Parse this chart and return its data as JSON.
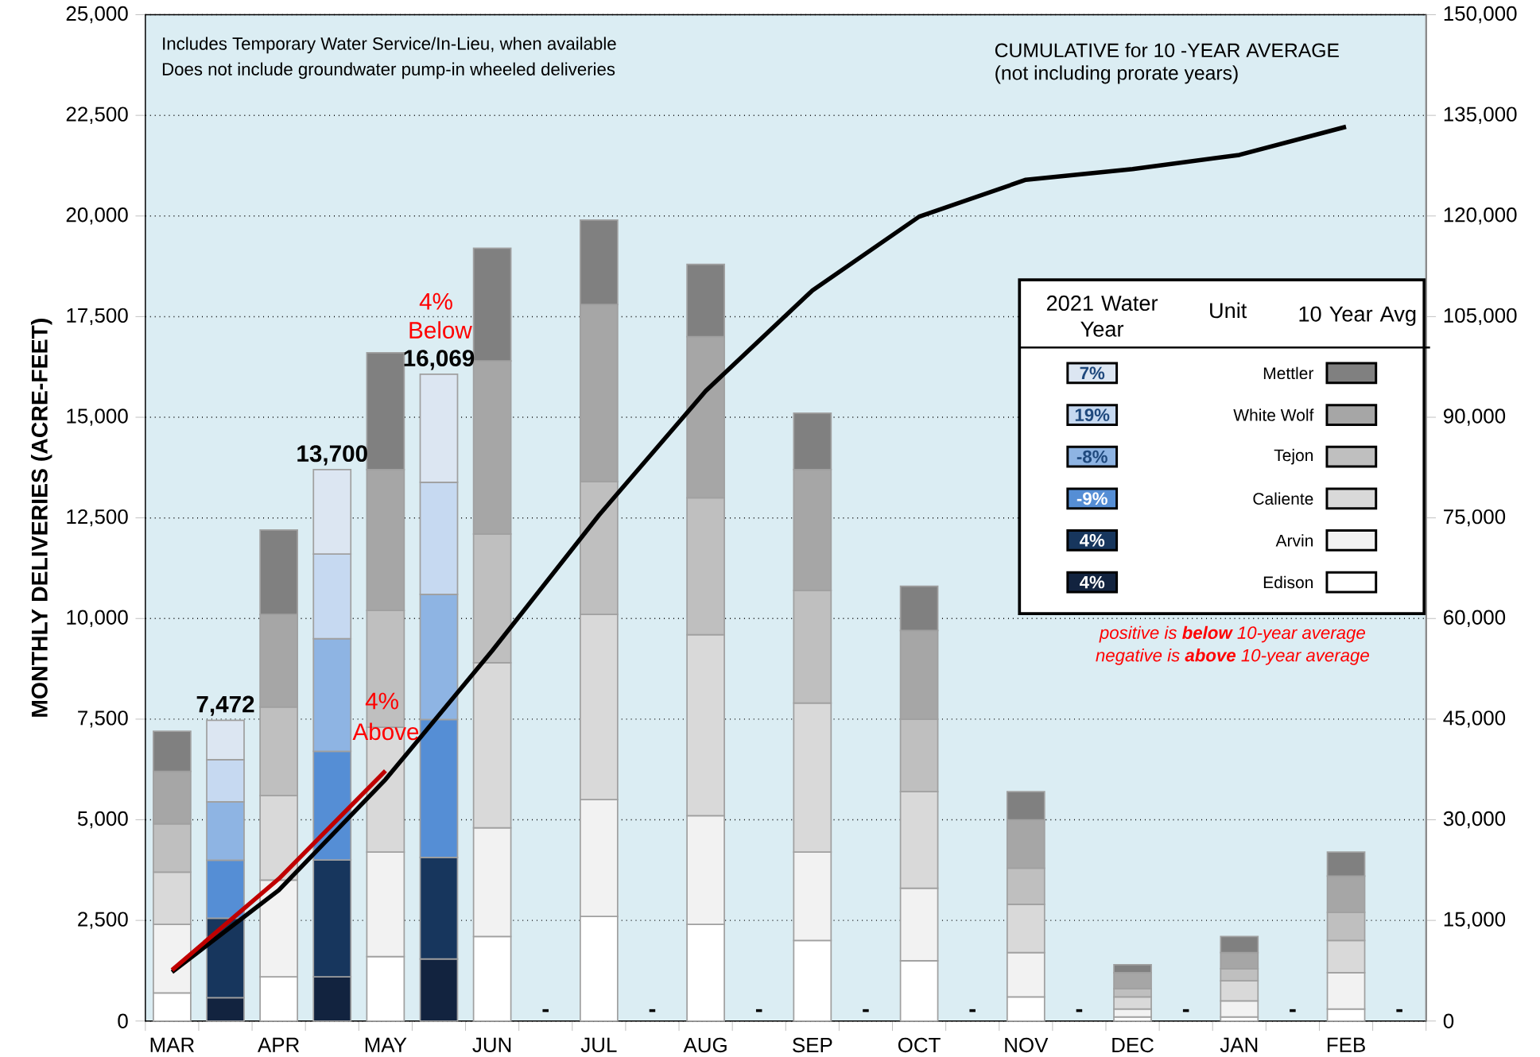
{
  "chart_data": {
    "type": "bar",
    "stacked": true,
    "ylabel": "MONTHLY DELIVERIES  (ACRE-FEET)",
    "legend_title": "Unit",
    "categories": [
      "MAR",
      null,
      "APR",
      null,
      "MAY",
      null,
      "JUN",
      null,
      "JUL",
      null,
      "AUG",
      null,
      "SEP",
      null,
      "OCT",
      null,
      "NOV",
      null,
      "DEC",
      null,
      "JAN",
      null,
      "FEB",
      null
    ],
    "series": [
      {
        "name": "Edison",
        "color": "#ffffff",
        "values": [
          700,
          null,
          1100,
          null,
          1600,
          null,
          2100,
          null,
          2600,
          null,
          2400,
          null,
          2000,
          null,
          1500,
          null,
          600,
          null,
          100,
          null,
          100,
          null,
          300,
          null
        ]
      },
      {
        "name": "Arvin",
        "color": "#f2f2f2",
        "values": [
          1700,
          null,
          2400,
          null,
          2600,
          null,
          2700,
          null,
          2900,
          null,
          2700,
          null,
          2200,
          null,
          1800,
          null,
          1100,
          null,
          200,
          null,
          400,
          null,
          900,
          null
        ]
      },
      {
        "name": "Caliente",
        "color": "#d9d9d9",
        "values": [
          1300,
          null,
          2100,
          null,
          3100,
          null,
          4100,
          null,
          4600,
          null,
          4500,
          null,
          3700,
          null,
          2400,
          null,
          1200,
          null,
          300,
          null,
          500,
          null,
          800,
          null
        ]
      },
      {
        "name": "Tejon",
        "color": "#bfbfbf",
        "values": [
          1200,
          null,
          2200,
          null,
          2900,
          null,
          3200,
          null,
          3300,
          null,
          3400,
          null,
          2800,
          null,
          1800,
          null,
          900,
          null,
          200,
          null,
          300,
          null,
          700,
          null
        ]
      },
      {
        "name": "White Wolf",
        "color": "#a6a6a6",
        "values": [
          1300,
          null,
          2300,
          null,
          3500,
          null,
          4300,
          null,
          4400,
          null,
          4000,
          null,
          3000,
          null,
          2200,
          null,
          1200,
          null,
          400,
          null,
          400,
          null,
          900,
          null
        ]
      },
      {
        "name": "Mettler",
        "color": "#808080",
        "values": [
          1000,
          null,
          2100,
          null,
          2900,
          null,
          2800,
          null,
          2100,
          null,
          1800,
          null,
          1400,
          null,
          1100,
          null,
          700,
          null,
          200,
          null,
          400,
          null,
          600,
          null
        ]
      },
      {
        "color": "#12233f",
        "values": [
          null,
          579,
          null,
          1100,
          null,
          1544,
          null,
          null,
          null,
          null,
          null,
          null,
          null,
          null,
          null,
          null,
          null,
          null,
          null,
          null,
          null,
          null,
          null,
          null
        ]
      },
      {
        "color": "#17365d",
        "values": [
          null,
          1975,
          null,
          2900,
          null,
          2519,
          null,
          null,
          null,
          null,
          null,
          null,
          null,
          null,
          null,
          null,
          null,
          null,
          null,
          null,
          null,
          null,
          null,
          null
        ]
      },
      {
        "color": "#558ed5",
        "values": [
          null,
          1441,
          null,
          2700,
          null,
          3428,
          null,
          null,
          null,
          null,
          null,
          null,
          null,
          null,
          null,
          null,
          null,
          null,
          null,
          null,
          null,
          null,
          null,
          null
        ]
      },
      {
        "color": "#8eb4e3",
        "values": [
          null,
          1453,
          null,
          2800,
          null,
          3110,
          null,
          null,
          null,
          null,
          null,
          null,
          null,
          null,
          null,
          null,
          null,
          null,
          null,
          null,
          null,
          null,
          null,
          null
        ]
      },
      {
        "color": "#c6d9f1",
        "values": [
          null,
          1044,
          null,
          2100,
          null,
          2781,
          null,
          null,
          null,
          null,
          null,
          null,
          null,
          null,
          null,
          null,
          null,
          null,
          null,
          null,
          null,
          null,
          null,
          null
        ]
      },
      {
        "color": "#dce6f2",
        "values": [
          null,
          980,
          null,
          2100,
          null,
          2687,
          null,
          null,
          null,
          null,
          null,
          null,
          null,
          null,
          null,
          null,
          null,
          null,
          null,
          null,
          null,
          null,
          null,
          null
        ]
      },
      {
        "type": "line",
        "axis": "y2",
        "color": "#000000",
        "values": [
          7300,
          null,
          19500,
          null,
          36000,
          null,
          55200,
          null,
          75400,
          null,
          93900,
          null,
          108900,
          null,
          119900,
          null,
          125400,
          null,
          127000,
          null,
          129100,
          null,
          133300,
          null
        ]
      },
      {
        "type": "line",
        "axis": "y2",
        "color": "#c00000",
        "values": [
          7600,
          null,
          21200,
          null,
          37300,
          null,
          null,
          null,
          null,
          null,
          null,
          null,
          null,
          null,
          null,
          null,
          null,
          null,
          null,
          null,
          null,
          null,
          null,
          null
        ]
      }
    ],
    "totals": [
      null,
      "7,472",
      null,
      "13,700",
      null,
      "16,069",
      null,
      "-",
      null,
      "-",
      null,
      "-",
      null,
      "-",
      null,
      "-",
      null,
      "-",
      null,
      "-",
      null,
      "-",
      null,
      "-"
    ],
    "ylim": [
      0,
      25000
    ],
    "yticks": [
      0,
      {
        "value": 2500,
        "label": "2,500"
      },
      {
        "value": 5000,
        "label": "5,000"
      },
      {
        "value": 7500,
        "label": "7,500"
      },
      {
        "value": 10000,
        "label": "10,000"
      },
      {
        "value": 12500,
        "label": "12,500"
      },
      {
        "value": 15000,
        "label": "15,000"
      },
      {
        "value": 17500,
        "label": "17,500"
      },
      {
        "value": 20000,
        "label": "20,000"
      },
      {
        "value": 22500,
        "label": "22,500"
      },
      {
        "value": 25000,
        "label": "25,000"
      }
    ],
    "y2lim": [
      0,
      150000
    ],
    "y2ticks": [
      0,
      {
        "value": 15000,
        "label": "15,000"
      },
      {
        "value": 30000,
        "label": "30,000"
      },
      {
        "value": 45000,
        "label": "45,000"
      },
      {
        "value": 60000,
        "label": "60,000"
      },
      {
        "value": 75000,
        "label": "75,000"
      },
      {
        "value": 90000,
        "label": "90,000"
      },
      {
        "value": 105000,
        "label": "105,000"
      },
      {
        "value": 120000,
        "label": "120,000"
      },
      {
        "value": 135000,
        "label": "135,000"
      },
      {
        "value": 150000,
        "label": "150,000"
      }
    ],
    "grid": "y",
    "legend": "right",
    "annotations": [
      "Includes Temporary Water Service/In-Lieu, when available",
      "Does not include groundwater pump-in wheeled deliveries",
      "CUMULATIVE for 10 -YEAR AVERAGE",
      "(not including prorate years)",
      "4%",
      "Below",
      "4%",
      "Above",
      "positive is **below** 10-year average",
      "negative is **above** 10-year average",
      "2021 Water Year",
      "10 Year Avg",
      "7%",
      "19%",
      "-8%",
      "-9%",
      "4%",
      "4%"
    ]
  }
}
